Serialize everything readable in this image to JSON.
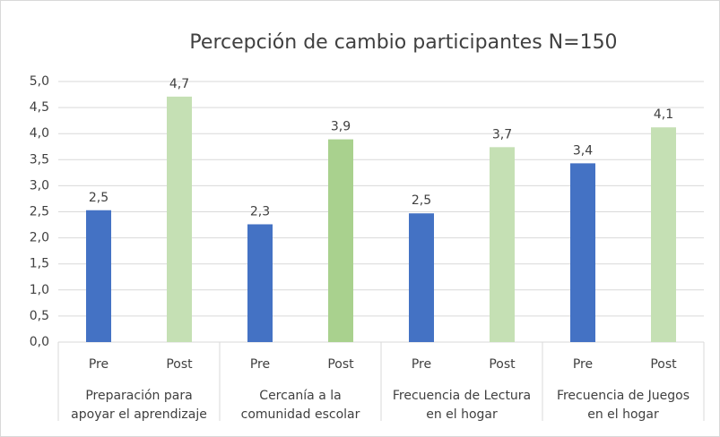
{
  "chart_data": {
    "type": "bar",
    "title": "Percepción de cambio  participantes N=150",
    "categories": [
      "Pre",
      "Post",
      "Pre",
      "Post",
      "Pre",
      "Post",
      "Pre",
      "Post"
    ],
    "groups": [
      [
        "Preparación para",
        "apoyar el aprendizaje"
      ],
      [
        "Cercanía  a la",
        "comunidad escolar"
      ],
      [
        "Frecuencia de Lectura",
        "en el hogar"
      ],
      [
        "Frecuencia de Juegos",
        "en el hogar"
      ]
    ],
    "values": [
      2.53,
      4.71,
      2.26,
      3.89,
      2.47,
      3.74,
      3.43,
      4.12
    ],
    "value_labels": [
      "2,5",
      "4,7",
      "2,3",
      "3,9",
      "2,5",
      "3,7",
      "3,4",
      "4,1"
    ],
    "colors": [
      "#4472c4",
      "#c5e0b4",
      "#4472c4",
      "#a9d18e",
      "#4472c4",
      "#c5e0b4",
      "#4472c4",
      "#c5e0b4"
    ],
    "ylim": [
      0,
      5
    ],
    "yticks": [
      {
        "value": 0,
        "label": "0,0"
      },
      {
        "value": 0.5,
        "label": "0,5"
      },
      {
        "value": 1,
        "label": "1,0"
      },
      {
        "value": 1.5,
        "label": "1,5"
      },
      {
        "value": 2,
        "label": "2,0"
      },
      {
        "value": 2.5,
        "label": "2,5"
      },
      {
        "value": 3,
        "label": "3,0"
      },
      {
        "value": 3.5,
        "label": "3,5"
      },
      {
        "value": 4,
        "label": "4,0"
      },
      {
        "value": 4.5,
        "label": "4,5"
      },
      {
        "value": 5,
        "label": "5,0"
      }
    ],
    "grid": true
  }
}
